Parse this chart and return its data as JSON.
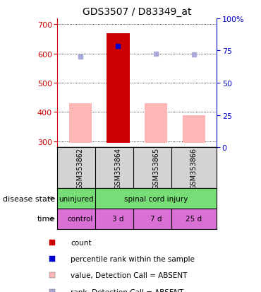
{
  "title": "GDS3507 / D83349_at",
  "samples": [
    "GSM353862",
    "GSM353864",
    "GSM353865",
    "GSM353866"
  ],
  "x_positions": [
    1,
    2,
    3,
    4
  ],
  "bar_values_pink": [
    430,
    670,
    430,
    390
  ],
  "bar_base": 295,
  "bar_color_pink": "#ffb6b6",
  "bar_color_red": "#cc0000",
  "red_bar_index": 1,
  "blue_square_value": 625,
  "blue_square_color": "#0000cc",
  "light_blue_values": [
    590,
    600,
    597
  ],
  "light_blue_color": "#aaaadd",
  "ylim_left": [
    280,
    720
  ],
  "ylim_right": [
    0,
    100
  ],
  "yticks_left": [
    300,
    400,
    500,
    600,
    700
  ],
  "yticks_right": [
    0,
    25,
    50,
    75,
    100
  ],
  "ytick_labels_right": [
    "0",
    "25",
    "50",
    "75",
    "100%"
  ],
  "grid_y": [
    300,
    400,
    500,
    600,
    700
  ],
  "legend_items": [
    "count",
    "percentile rank within the sample",
    "value, Detection Call = ABSENT",
    "rank, Detection Call = ABSENT"
  ],
  "legend_colors": [
    "#cc0000",
    "#0000cc",
    "#ffb6b6",
    "#aaaadd"
  ],
  "bg_color": "#d3d3d3",
  "plot_bg": "#ffffff",
  "left_axis_color": "#cc0000",
  "right_axis_color": "#0000cc",
  "green_color": "#77dd77",
  "violet_color": "#da70d6",
  "violet_light": "#ee82ee"
}
